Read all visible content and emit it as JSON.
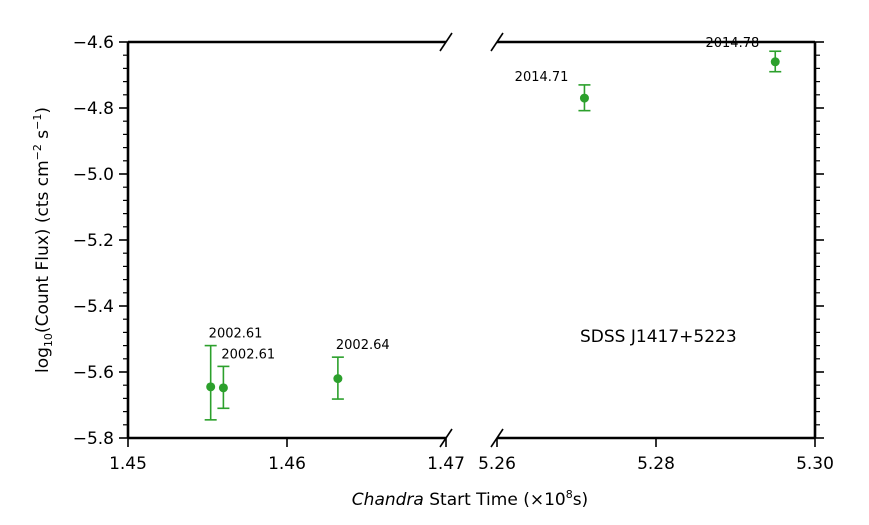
{
  "chart_data": {
    "type": "scatter",
    "title": "",
    "annotation": "SDSS J1417+5223",
    "xlabel_italic": "Chandra",
    "xlabel_rest": " Start Time (×10",
    "xlabel_exp": "8",
    "xlabel_unit": "s)",
    "ylabel_main": "log",
    "ylabel_sub": "10",
    "ylabel_mid": "(Count Flux) (cts cm",
    "ylabel_sup1": "−2",
    "ylabel_mid2": " s",
    "ylabel_sup2": "−1",
    "ylabel_end": ")",
    "ylim": [
      -5.8,
      -4.6
    ],
    "y_ticks": [
      -5.8,
      -5.6,
      -5.4,
      -5.2,
      -5.0,
      -4.8,
      -4.6
    ],
    "y_tick_labels": [
      "−5.8",
      "−5.6",
      "−5.4",
      "−5.2",
      "−5.0",
      "−4.8",
      "−4.6"
    ],
    "broken_x_axis": true,
    "panels": [
      {
        "xlim": [
          1.45,
          1.47
        ],
        "x_ticks": [
          1.45,
          1.46,
          1.47
        ],
        "x_tick_labels": [
          "1.45",
          "1.46",
          "1.47"
        ]
      },
      {
        "xlim": [
          5.26,
          5.3
        ],
        "x_ticks": [
          5.26,
          5.28,
          5.3
        ],
        "x_tick_labels": [
          "5.26",
          "5.28",
          "5.30"
        ]
      }
    ],
    "marker_color": "#2ca02c",
    "points": [
      {
        "panel": 0,
        "x": 1.4552,
        "y": -5.645,
        "yerr_low": 0.1,
        "yerr_high": 0.125,
        "label": "2002.61"
      },
      {
        "panel": 0,
        "x": 1.456,
        "y": -5.648,
        "yerr_low": 0.062,
        "yerr_high": 0.065,
        "label": "2002.61"
      },
      {
        "panel": 0,
        "x": 1.4632,
        "y": -5.62,
        "yerr_low": 0.062,
        "yerr_high": 0.065,
        "label": "2002.64"
      },
      {
        "panel": 1,
        "x": 5.271,
        "y": -4.77,
        "yerr_low": 0.038,
        "yerr_high": 0.04,
        "label": "2014.71"
      },
      {
        "panel": 1,
        "x": 5.295,
        "y": -4.66,
        "yerr_low": 0.03,
        "yerr_high": 0.032,
        "label": "2014.78"
      }
    ]
  }
}
